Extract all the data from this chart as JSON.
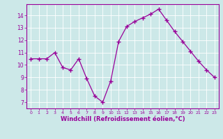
{
  "x": [
    0,
    1,
    2,
    3,
    4,
    5,
    6,
    7,
    8,
    9,
    10,
    11,
    12,
    13,
    14,
    15,
    16,
    17,
    18,
    19,
    20,
    21,
    22,
    23
  ],
  "y": [
    10.5,
    10.5,
    10.5,
    11.0,
    9.8,
    9.6,
    10.5,
    8.9,
    7.5,
    7.0,
    8.7,
    11.9,
    13.1,
    13.5,
    13.8,
    14.1,
    14.5,
    13.6,
    12.7,
    11.9,
    11.1,
    10.3,
    9.6,
    9.0
  ],
  "line_color": "#990099",
  "marker": "+",
  "background_color": "#cce8e8",
  "grid_color": "#aacccc",
  "xlabel": "Windchill (Refroidissement éolien,°C)",
  "xlabel_color": "#990099",
  "tick_color": "#990099",
  "ylim": [
    6.5,
    14.9
  ],
  "xlim": [
    -0.5,
    23.5
  ],
  "yticks": [
    7,
    8,
    9,
    10,
    11,
    12,
    13,
    14
  ],
  "xticks": [
    0,
    1,
    2,
    3,
    4,
    5,
    6,
    7,
    8,
    9,
    10,
    11,
    12,
    13,
    14,
    15,
    16,
    17,
    18,
    19,
    20,
    21,
    22,
    23
  ]
}
